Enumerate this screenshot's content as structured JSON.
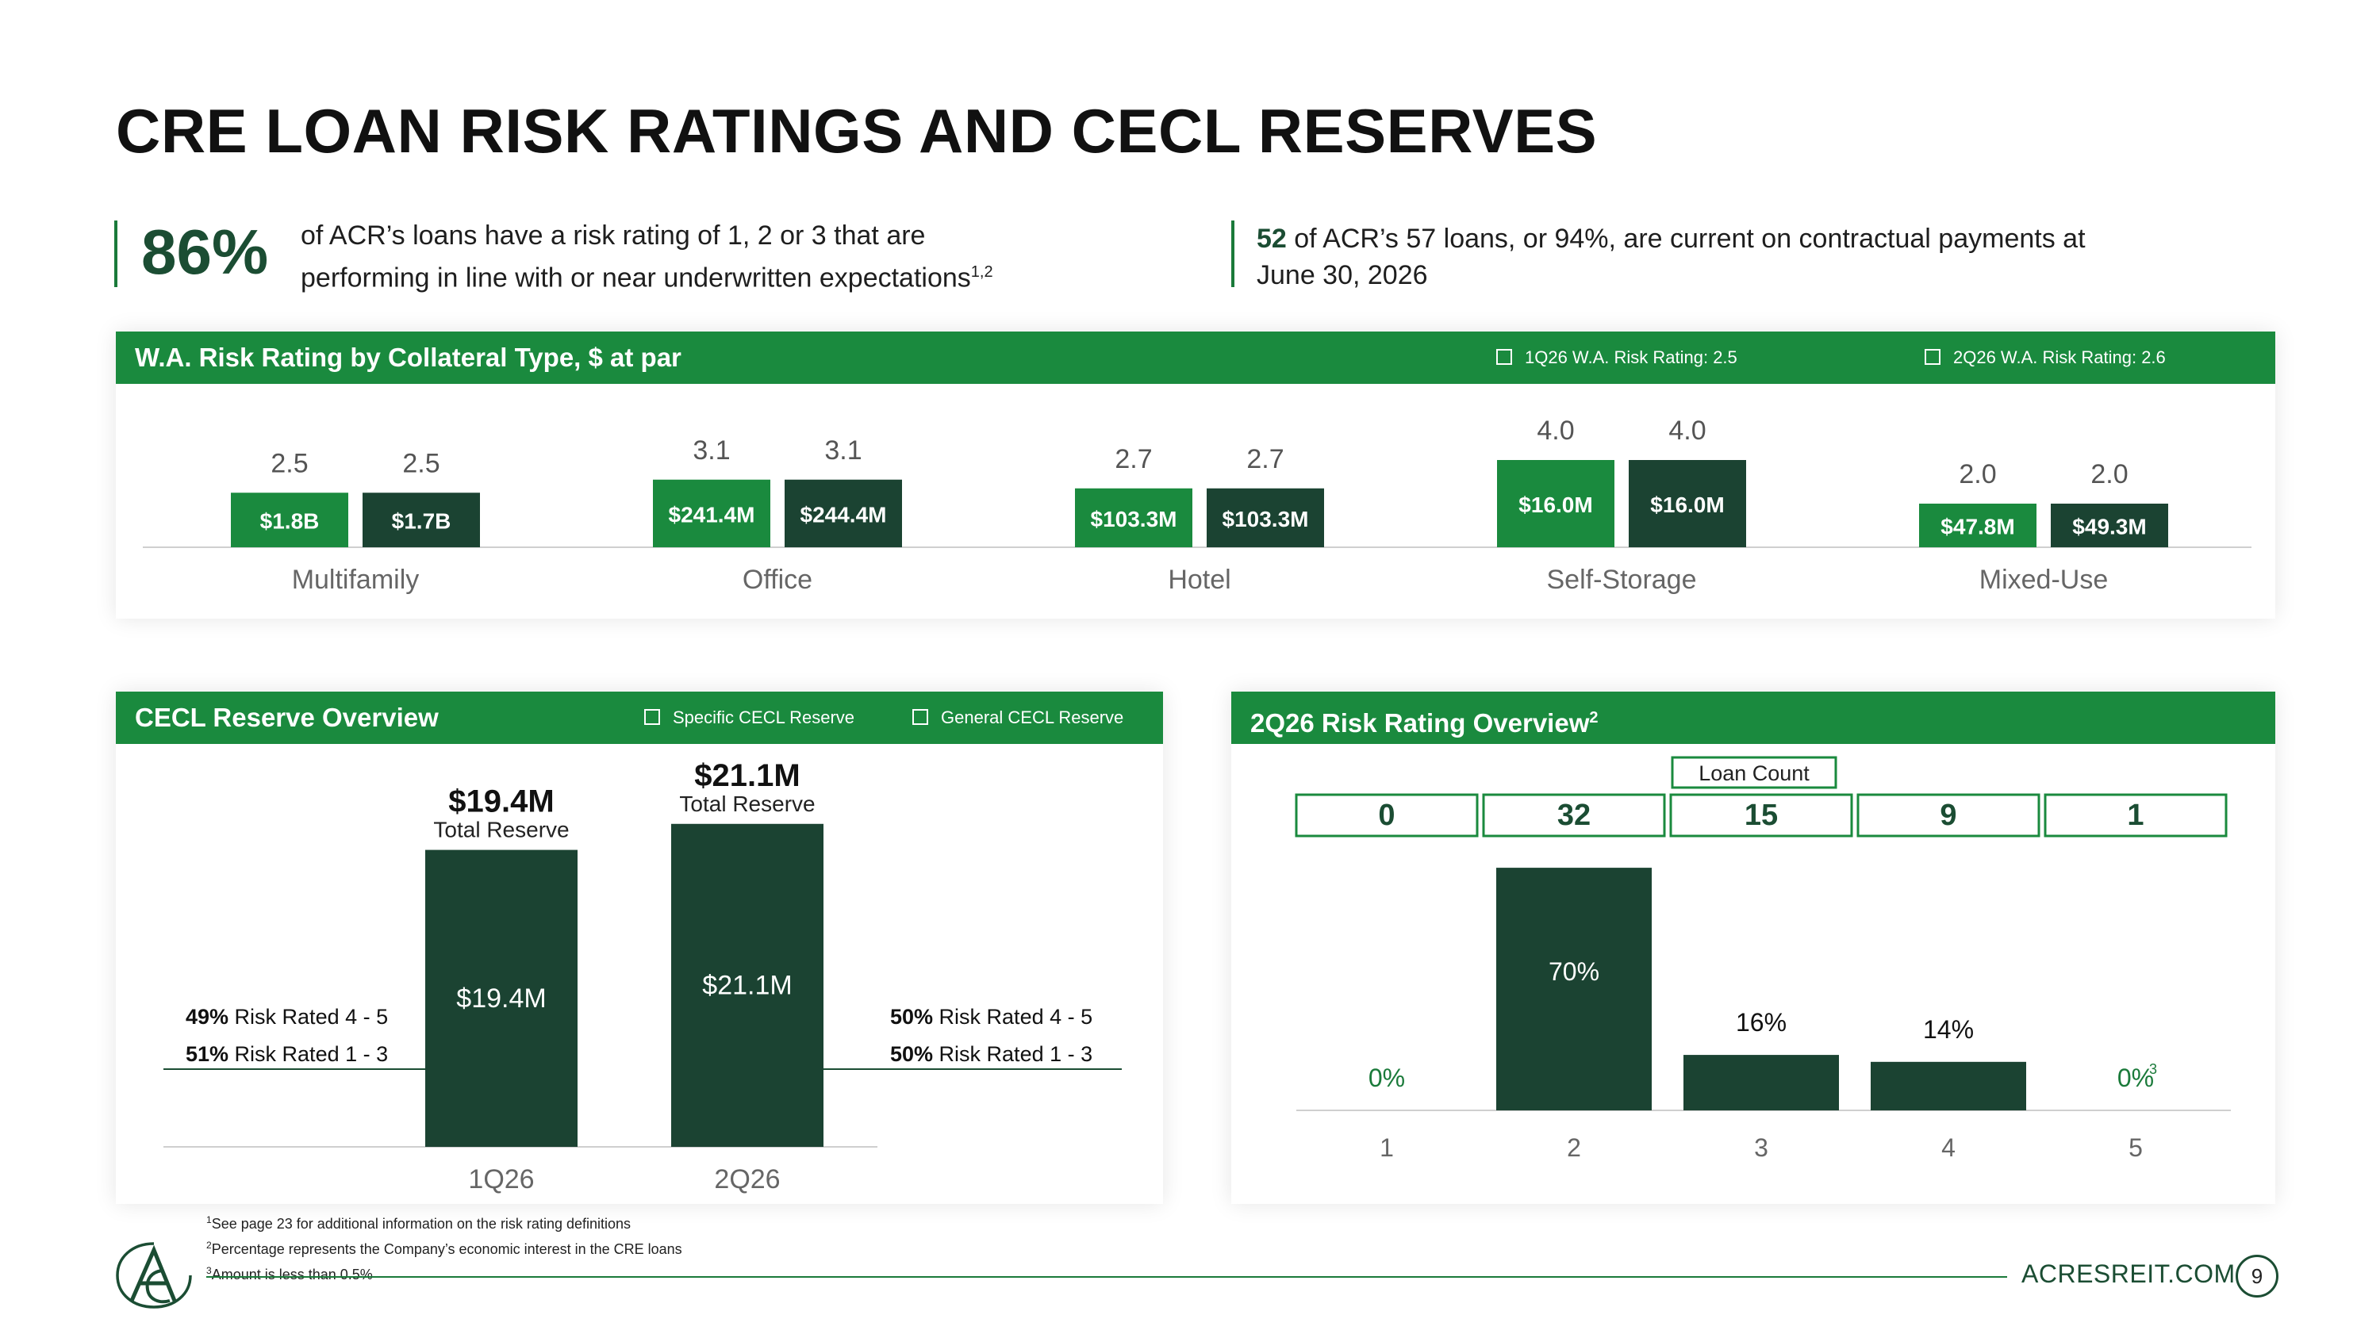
{
  "title": "CRE LOAN RISK RATINGS AND CECL RESERVES",
  "stat1": {
    "value": "86%",
    "line1": "of ACR’s loans have a risk rating of 1, 2 or 3 that are",
    "line2": "performing in line with or near underwritten expectations",
    "sup": "1,2"
  },
  "stat2": {
    "bold": "52",
    "line1_rest": " of ACR’s 57 loans, or 94%, are current on contractual payments at",
    "line2": "June 30, 2026"
  },
  "wa_panel": {
    "header": "W.A. Risk Rating by Collateral Type, $ at par",
    "legend": [
      "1Q26 W.A. Risk Rating: 2.5",
      "2Q26 W.A. Risk Rating: 2.6"
    ]
  },
  "cecl_panel": {
    "header": "CECL Reserve Overview",
    "legend": [
      "Specific CECL Reserve",
      "General CECL Reserve"
    ],
    "left_notes": [
      {
        "pct": "49%",
        "text": " Risk Rated 4 - 5"
      },
      {
        "pct": "51%",
        "text": " Risk Rated 1 - 3"
      }
    ],
    "right_notes": [
      {
        "pct": "50%",
        "text": " Risk Rated 4 - 5"
      },
      {
        "pct": "50%",
        "text": " Risk Rated 1 - 3"
      }
    ]
  },
  "rr_panel": {
    "header": "2Q26 Risk Rating Overview",
    "header_sup": "2",
    "loan_count_label": "Loan Count"
  },
  "chart_data": [
    {
      "type": "bar",
      "title": "W.A. Risk Rating by Collateral Type, $ at par",
      "categories": [
        "Multifamily",
        "Office",
        "Hotel",
        "Self-Storage",
        "Mixed-Use"
      ],
      "series": [
        {
          "name": "1Q26 W.A. Risk Rating: 2.5",
          "values": [
            2.5,
            3.1,
            2.7,
            4.0,
            2.0
          ],
          "labels": [
            "2.5",
            "3.1",
            "2.7",
            "4.0",
            "2.0"
          ],
          "amounts": [
            "$1.8B",
            "$241.4M",
            "$103.3M",
            "$16.0M",
            "$47.8M"
          ],
          "color": "#1a8a3e"
        },
        {
          "name": "2Q26 W.A. Risk Rating: 2.6",
          "values": [
            2.5,
            3.1,
            2.7,
            4.0,
            2.0
          ],
          "labels": [
            "2.5",
            "3.1",
            "2.7",
            "4.0",
            "2.0"
          ],
          "amounts": [
            "$1.7B",
            "$244.4M",
            "$103.3M",
            "$16.0M",
            "$49.3M"
          ],
          "color": "#1b4332"
        }
      ]
    },
    {
      "type": "bar",
      "title": "CECL Reserve Overview",
      "categories": [
        "1Q26",
        "2Q26"
      ],
      "series": [
        {
          "name": "Specific CECL Reserve",
          "values": [
            0,
            0
          ]
        },
        {
          "name": "General CECL Reserve",
          "values": [
            19.4,
            21.1
          ],
          "labels": [
            "$19.4M",
            "$21.1M"
          ],
          "color": "#1b4332"
        }
      ],
      "totals": [
        "$19.4M",
        "$21.1M"
      ],
      "total_caption": "Total Reserve"
    },
    {
      "type": "bar",
      "title": "2Q26 Risk Rating Overview",
      "categories": [
        "1",
        "2",
        "3",
        "4",
        "5"
      ],
      "values": [
        0,
        70,
        16,
        14,
        0
      ],
      "labels": [
        "0%",
        "70%",
        "16%",
        "14%",
        "0%"
      ],
      "label_sups": [
        "",
        "",
        "",
        "",
        "3"
      ],
      "loan_counts": [
        "0",
        "32",
        "15",
        "9",
        "1"
      ],
      "color": "#1b4332"
    }
  ],
  "footnotes": [
    {
      "n": "1",
      "text": "See page 23 for additional information on the risk rating definitions"
    },
    {
      "n": "2",
      "text": "Percentage represents the Company’s economic interest in the CRE loans"
    },
    {
      "n": "3",
      "text": "Amount is less than 0.5%"
    }
  ],
  "footer": {
    "site": "ACRESREIT.COM",
    "page": "9"
  },
  "colors": {
    "green": "#1a8a3e",
    "dark_green": "#1b4332",
    "text_dark_green": "#1b4d33"
  }
}
